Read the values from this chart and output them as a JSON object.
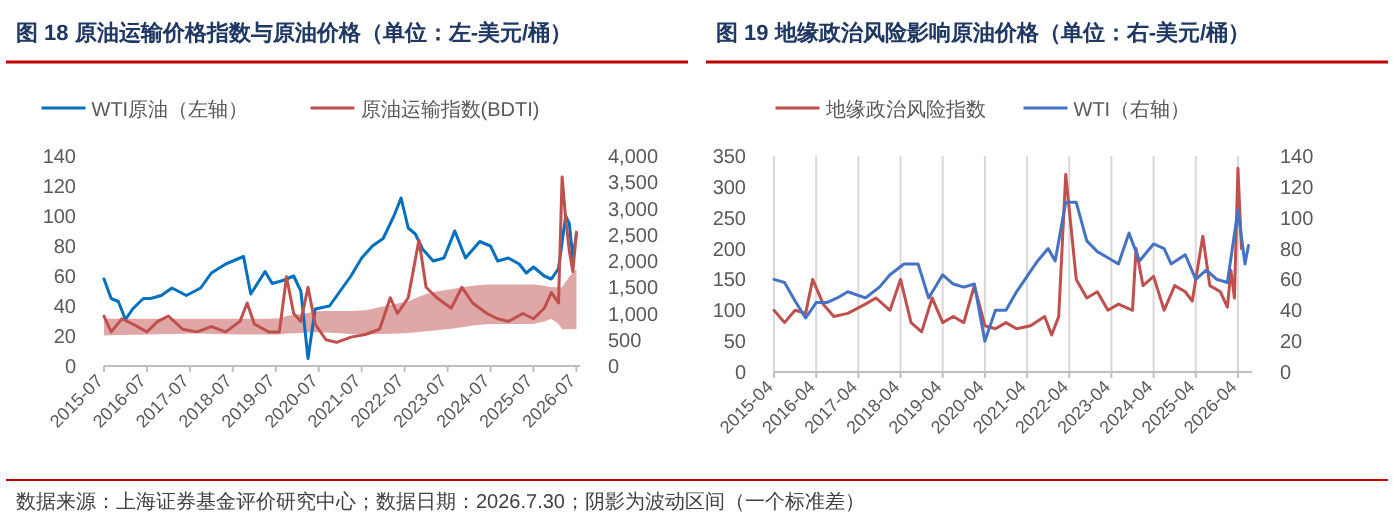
{
  "chart_data": [
    {
      "type": "line",
      "title": "图 18 原油运输价格指数与原油价格（单位：左-美元/桶）",
      "legend": "top",
      "grid": false,
      "xlim": [
        "2015-07",
        "2026-08"
      ],
      "xticks": [
        "2015-07",
        "2016-07",
        "2017-07",
        "2018-07",
        "2019-07",
        "2020-07",
        "2021-07",
        "2022-07",
        "2023-07",
        "2024-07",
        "2025-07",
        "2026-07"
      ],
      "ylim": [
        0,
        140
      ],
      "yticks": [
        0,
        20,
        40,
        60,
        80,
        100,
        120,
        140
      ],
      "y2lim": [
        0,
        4000
      ],
      "y2ticks": [
        {
          "value": 0,
          "label": "0"
        },
        {
          "value": 500,
          "label": "500"
        },
        {
          "value": 1000,
          "label": "1,000"
        },
        {
          "value": 1500,
          "label": "1,500"
        },
        {
          "value": 2000,
          "label": "2,000"
        },
        {
          "value": 2500,
          "label": "2,500"
        },
        {
          "value": 3000,
          "label": "3,000"
        },
        {
          "value": 3500,
          "label": "3,500"
        },
        {
          "value": 4000,
          "label": "4,000"
        }
      ],
      "series": [
        {
          "name": "WTI原油（左轴）",
          "color": "#0070c0",
          "x": [
            "2015-07",
            "2015-09",
            "2015-11",
            "2016-01",
            "2016-03",
            "2016-06",
            "2016-08",
            "2016-11",
            "2017-02",
            "2017-06",
            "2017-10",
            "2018-01",
            "2018-05",
            "2018-10",
            "2018-12",
            "2019-04",
            "2019-06",
            "2019-09",
            "2019-12",
            "2020-02",
            "2020-04",
            "2020-06",
            "2020-10",
            "2021-01",
            "2021-04",
            "2021-07",
            "2021-10",
            "2022-01",
            "2022-02",
            "2022-04",
            "2022-06",
            "2022-08",
            "2022-10",
            "2022-12",
            "2023-03",
            "2023-06",
            "2023-09",
            "2023-12",
            "2024-04",
            "2024-07",
            "2024-09",
            "2024-12",
            "2025-03",
            "2025-05",
            "2025-07",
            "2025-10",
            "2025-12",
            "2026-02",
            "2026-04",
            "2026-05",
            "2026-06",
            "2026-07"
          ],
          "values": [
            58,
            45,
            43,
            31,
            38,
            45,
            45,
            47,
            52,
            47,
            52,
            62,
            68,
            73,
            48,
            63,
            55,
            57,
            60,
            50,
            5,
            38,
            40,
            50,
            60,
            72,
            80,
            85,
            90,
            100,
            112,
            92,
            88,
            78,
            70,
            72,
            90,
            72,
            83,
            80,
            70,
            72,
            68,
            62,
            66,
            60,
            58,
            65,
            100,
            95,
            72,
            88
          ]
        },
        {
          "name": "原油运输指数(BDTI)",
          "axis": "y2",
          "color": "#c0504d",
          "x": [
            "2015-07",
            "2015-09",
            "2015-12",
            "2016-03",
            "2016-07",
            "2016-10",
            "2017-01",
            "2017-05",
            "2017-09",
            "2018-01",
            "2018-05",
            "2018-09",
            "2018-11",
            "2019-01",
            "2019-05",
            "2019-08",
            "2019-10",
            "2019-12",
            "2020-02",
            "2020-04",
            "2020-06",
            "2020-09",
            "2020-12",
            "2021-04",
            "2021-08",
            "2021-12",
            "2022-03",
            "2022-05",
            "2022-08",
            "2022-11",
            "2023-01",
            "2023-04",
            "2023-08",
            "2023-11",
            "2024-02",
            "2024-06",
            "2024-09",
            "2024-12",
            "2025-04",
            "2025-07",
            "2025-10",
            "2025-12",
            "2026-02",
            "2026-03",
            "2026-04",
            "2026-05",
            "2026-06",
            "2026-07"
          ],
          "values": [
            950,
            650,
            900,
            800,
            650,
            850,
            950,
            700,
            650,
            750,
            650,
            850,
            1200,
            800,
            650,
            650,
            1700,
            1000,
            850,
            1500,
            800,
            500,
            450,
            550,
            600,
            700,
            1300,
            1000,
            1300,
            2400,
            1500,
            1300,
            1100,
            1500,
            1200,
            1000,
            900,
            850,
            1000,
            900,
            1100,
            1400,
            1200,
            3600,
            2800,
            2200,
            1800,
            2550
          ],
          "lower": [
            580,
            585,
            590,
            595,
            600,
            605,
            610,
            615,
            620,
            610,
            605,
            600,
            600,
            600,
            600,
            600,
            620,
            625,
            630,
            640,
            645,
            640,
            630,
            610,
            600,
            610,
            615,
            620,
            630,
            650,
            660,
            680,
            710,
            740,
            770,
            795,
            800,
            800,
            800,
            800,
            850,
            900,
            800,
            700,
            700,
            700,
            700,
            700
          ],
          "upper": [
            900,
            900,
            900,
            900,
            900,
            900,
            900,
            900,
            900,
            900,
            900,
            900,
            900,
            900,
            900,
            910,
            950,
            970,
            990,
            1010,
            1040,
            1050,
            1050,
            1050,
            1060,
            1120,
            1160,
            1190,
            1230,
            1320,
            1370,
            1420,
            1460,
            1500,
            1530,
            1550,
            1550,
            1550,
            1550,
            1550,
            1530,
            1500,
            1500,
            1500,
            1600,
            1700,
            1780,
            1850
          ]
        }
      ],
      "annotations": [
        "数据来源：上海证券基金评价研究中心；数据日期：2026.7.30；阴影为波动区间（一个标准差）"
      ]
    },
    {
      "type": "line",
      "title": "图 19 地缘政治风险影响原油价格（单位：右-美元/桶）",
      "legend": "top",
      "grid": "x",
      "xlim": [
        "2015-04",
        "2026-08"
      ],
      "xticks": [
        "2015-04",
        "2016-04",
        "2017-04",
        "2018-04",
        "2019-04",
        "2020-04",
        "2021-04",
        "2022-04",
        "2023-04",
        "2024-04",
        "2025-04",
        "2026-04"
      ],
      "ylim": [
        0,
        350
      ],
      "yticks": [
        0,
        50,
        100,
        150,
        200,
        250,
        300,
        350
      ],
      "y2lim": [
        0,
        140
      ],
      "y2ticks": [
        0,
        20,
        40,
        60,
        80,
        100,
        120,
        140
      ],
      "series": [
        {
          "name": "地缘政治风险指数",
          "color": "#c0504d",
          "x": [
            "2015-04",
            "2015-07",
            "2015-10",
            "2016-01",
            "2016-03",
            "2016-06",
            "2016-09",
            "2017-01",
            "2017-06",
            "2017-09",
            "2018-01",
            "2018-04",
            "2018-07",
            "2018-10",
            "2019-01",
            "2019-04",
            "2019-07",
            "2019-10",
            "2020-01",
            "2020-04",
            "2020-07",
            "2020-10",
            "2021-01",
            "2021-05",
            "2021-09",
            "2021-11",
            "2022-01",
            "2022-03",
            "2022-06",
            "2022-09",
            "2022-12",
            "2023-03",
            "2023-06",
            "2023-10",
            "2023-11",
            "2024-01",
            "2024-04",
            "2024-07",
            "2024-10",
            "2025-01",
            "2025-03",
            "2025-06",
            "2025-08",
            "2025-11",
            "2026-01",
            "2026-02",
            "2026-03",
            "2026-04",
            "2026-05"
          ],
          "values": [
            100,
            80,
            100,
            95,
            150,
            110,
            90,
            95,
            110,
            120,
            100,
            150,
            80,
            65,
            120,
            80,
            90,
            80,
            140,
            75,
            70,
            80,
            70,
            75,
            90,
            60,
            90,
            320,
            150,
            120,
            130,
            100,
            110,
            100,
            200,
            140,
            155,
            100,
            140,
            130,
            115,
            220,
            140,
            130,
            105,
            165,
            120,
            330,
            200
          ]
        },
        {
          "name": "WTI（右轴）",
          "axis": "y2",
          "color": "#4472c4",
          "x": [
            "2015-04",
            "2015-07",
            "2015-10",
            "2016-01",
            "2016-04",
            "2016-07",
            "2016-10",
            "2017-01",
            "2017-06",
            "2017-10",
            "2018-01",
            "2018-05",
            "2018-09",
            "2018-12",
            "2019-04",
            "2019-07",
            "2019-10",
            "2020-01",
            "2020-04",
            "2020-07",
            "2020-10",
            "2021-01",
            "2021-04",
            "2021-07",
            "2021-10",
            "2021-12",
            "2022-03",
            "2022-06",
            "2022-09",
            "2022-12",
            "2023-03",
            "2023-06",
            "2023-09",
            "2023-12",
            "2024-04",
            "2024-07",
            "2024-09",
            "2025-01",
            "2025-04",
            "2025-07",
            "2025-10",
            "2026-01",
            "2026-04",
            "2026-06",
            "2026-07"
          ],
          "values": [
            60,
            58,
            46,
            35,
            45,
            45,
            48,
            52,
            48,
            55,
            63,
            70,
            70,
            48,
            63,
            57,
            55,
            57,
            20,
            40,
            40,
            52,
            62,
            72,
            80,
            72,
            110,
            110,
            85,
            78,
            74,
            70,
            90,
            72,
            83,
            80,
            70,
            76,
            60,
            66,
            60,
            58,
            105,
            70,
            82
          ]
        }
      ]
    }
  ]
}
